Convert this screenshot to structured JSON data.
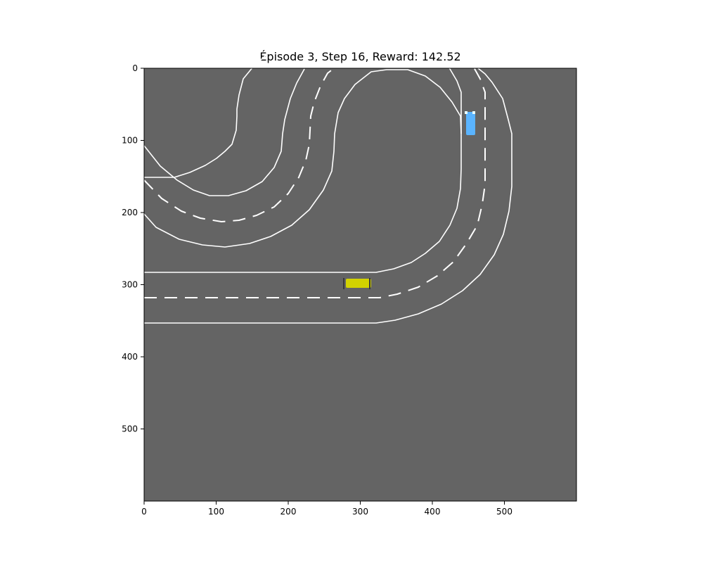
{
  "header": {
    "title": "Épisode 3, Step 16, Reward: 142.52"
  },
  "colors": {
    "ground": "#646464",
    "lane_line": "#ffffff",
    "agent_car": "#d2d200",
    "other_car": "#5ab4ff",
    "axis": "#000000"
  },
  "axes": {
    "x_ticks": [
      {
        "value": 0,
        "label": "0"
      },
      {
        "value": 100,
        "label": "100"
      },
      {
        "value": 200,
        "label": "200"
      },
      {
        "value": 300,
        "label": "300"
      },
      {
        "value": 400,
        "label": "400"
      },
      {
        "value": 500,
        "label": "500"
      }
    ],
    "y_ticks": [
      {
        "value": 0,
        "label": "0"
      },
      {
        "value": 100,
        "label": "100"
      },
      {
        "value": 200,
        "label": "200"
      },
      {
        "value": 300,
        "label": "300"
      },
      {
        "value": 400,
        "label": "400"
      },
      {
        "value": 500,
        "label": "500"
      }
    ],
    "range": [
      0,
      600
    ]
  },
  "cars": [
    {
      "id": "agent-car",
      "center": [
        297,
        298
      ],
      "size": [
        34,
        13
      ],
      "heading": 0,
      "color": "#d2d200"
    },
    {
      "id": "other-car",
      "center": [
        452,
        75
      ],
      "size": [
        12,
        31
      ],
      "heading": 0,
      "color": "#5ab4ff"
    }
  ]
}
